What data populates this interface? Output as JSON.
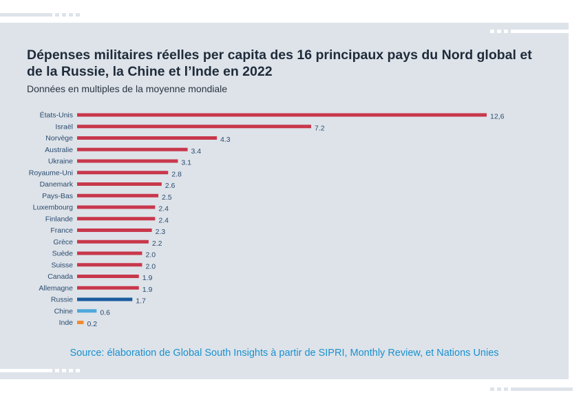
{
  "title": "Dépenses militaires réelles per capita des 16 principaux pays du Nord global et de la Russie, la Chine et l’Inde en 2022",
  "subtitle": "Données en multiples de la moyenne mondiale",
  "source": "Source: élaboration de Global South Insights à partir de SIPRI, Monthly Review, et Nations Unies",
  "colors": {
    "north": "#c8374b",
    "russia": "#1b5c9e",
    "china": "#4ea8dc",
    "india": "#f08a2e",
    "label": "#2b4a6e"
  },
  "chart_data": {
    "type": "bar",
    "orientation": "horizontal",
    "categories": [
      "États-Unis",
      "Israël",
      "Norvège",
      "Australie",
      "Ukraine",
      "Royaume-Uni",
      "Danemark",
      "Pays-Bas",
      "Luxembourg",
      "Finlande",
      "France",
      "Grèce",
      "Suède",
      "Suisse",
      "Canada",
      "Allemagne",
      "Russie",
      "Chine",
      "Inde"
    ],
    "values": [
      12.6,
      7.2,
      4.3,
      3.4,
      3.1,
      2.8,
      2.6,
      2.5,
      2.4,
      2.4,
      2.3,
      2.2,
      2.0,
      2.0,
      1.9,
      1.9,
      1.7,
      0.6,
      0.2
    ],
    "value_labels": [
      "12,6",
      "7.2",
      "4.3",
      "3.4",
      "3.1",
      "2.8",
      "2.6",
      "2.5",
      "2.4",
      "2.4",
      "2.3",
      "2.2",
      "2.0",
      "2.0",
      "1.9",
      "1.9",
      "1.7",
      "0.6",
      "0.2"
    ],
    "bar_groups": [
      "north",
      "north",
      "north",
      "north",
      "north",
      "north",
      "north",
      "north",
      "north",
      "north",
      "north",
      "north",
      "north",
      "north",
      "north",
      "north",
      "russia",
      "china",
      "india"
    ],
    "xlim": [
      0,
      12.6
    ],
    "grid": false,
    "legend": "none"
  }
}
